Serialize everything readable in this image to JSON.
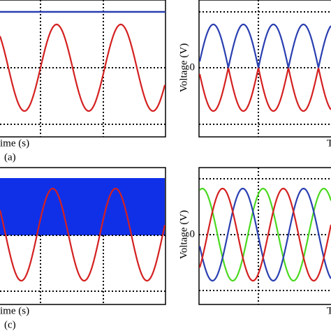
{
  "panels": [
    {
      "x_label": "ime (s)",
      "caption": "(a)"
    },
    {
      "y_label": "Voltage (V)",
      "zero_label": "0",
      "x_label": "T"
    },
    {
      "x_label": "ime (s)",
      "caption": "(c)"
    },
    {
      "y_label": "Voltage (V)",
      "zero_label": "0",
      "x_label": "T"
    }
  ]
}
